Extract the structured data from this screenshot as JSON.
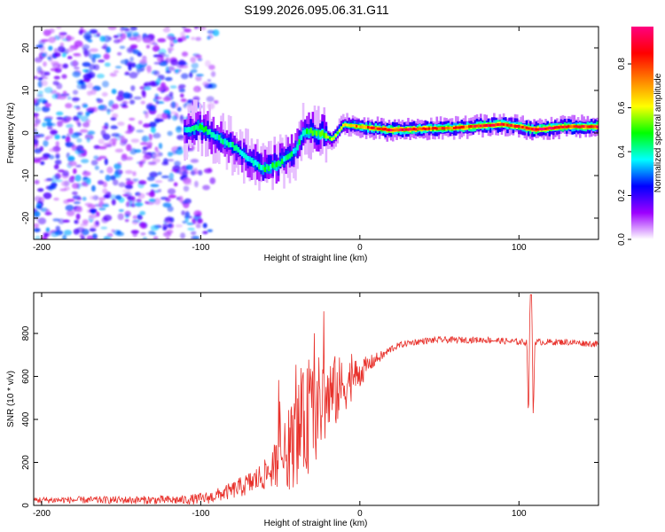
{
  "figure_title": "S199.2026.095.06.31.G11",
  "chart_data": [
    {
      "type": "heatmap",
      "title": "",
      "xlabel": "Height of straight line (km)",
      "ylabel": "Frequency (Hz)",
      "xlim": [
        -205,
        150
      ],
      "ylim": [
        -25,
        25
      ],
      "x_ticks": [
        -200,
        -100,
        0,
        100
      ],
      "y_ticks": [
        -20,
        -10,
        0,
        10,
        20
      ],
      "colorbar": {
        "label": "Normalized spectral amplitude",
        "range": [
          0,
          0.97
        ],
        "ticks": [
          0.0,
          0.2,
          0.4,
          0.6,
          0.8
        ],
        "colors": [
          "#ffffff",
          "#9d00ff",
          "#0000ff",
          "#00ffff",
          "#00ff00",
          "#ffff00",
          "#ff8000",
          "#ff0000",
          "#ff0080"
        ]
      },
      "noise_region": {
        "x": [
          -205,
          -100
        ],
        "y": [
          -25,
          25
        ],
        "amplitude": [
          0.05,
          0.35
        ]
      },
      "ridge": [
        {
          "x": -110,
          "freq": 0.5,
          "amp": 0.35
        },
        {
          "x": -100,
          "freq": 1.5,
          "amp": 0.45
        },
        {
          "x": -90,
          "freq": -1.0,
          "amp": 0.4
        },
        {
          "x": -80,
          "freq": -3.0,
          "amp": 0.4
        },
        {
          "x": -70,
          "freq": -6.0,
          "amp": 0.4
        },
        {
          "x": -60,
          "freq": -8.5,
          "amp": 0.45
        },
        {
          "x": -50,
          "freq": -7.0,
          "amp": 0.45
        },
        {
          "x": -40,
          "freq": -4.0,
          "amp": 0.4
        },
        {
          "x": -35,
          "freq": 0.5,
          "amp": 0.45
        },
        {
          "x": -25,
          "freq": 0.0,
          "amp": 0.5
        },
        {
          "x": -17,
          "freq": -1.5,
          "amp": 0.55
        },
        {
          "x": -10,
          "freq": 2.0,
          "amp": 0.6
        },
        {
          "x": 0,
          "freq": 1.5,
          "amp": 0.75
        },
        {
          "x": 20,
          "freq": 0.7,
          "amp": 0.9
        },
        {
          "x": 40,
          "freq": 1.0,
          "amp": 0.85
        },
        {
          "x": 60,
          "freq": 1.2,
          "amp": 0.8
        },
        {
          "x": 80,
          "freq": 1.8,
          "amp": 0.9
        },
        {
          "x": 90,
          "freq": 2.0,
          "amp": 0.85
        },
        {
          "x": 100,
          "freq": 1.5,
          "amp": 0.8
        },
        {
          "x": 110,
          "freq": 0.8,
          "amp": 0.95
        },
        {
          "x": 130,
          "freq": 1.5,
          "amp": 0.85
        },
        {
          "x": 150,
          "freq": 1.5,
          "amp": 0.85
        }
      ]
    },
    {
      "type": "line",
      "title": "",
      "xlabel": "Height of straight line (km)",
      "ylabel": "SNR (10 * v/v)",
      "xlim": [
        -205,
        150
      ],
      "ylim": [
        0,
        990
      ],
      "x_ticks": [
        -200,
        -100,
        0,
        100
      ],
      "y_ticks": [
        0,
        200,
        400,
        600,
        800
      ],
      "series": [
        {
          "name": "SNR",
          "color": "#e8302a",
          "x": [
            -205,
            -150,
            -110,
            -95,
            -80,
            -70,
            -60,
            -50,
            -45,
            -40,
            -35,
            -30,
            -25,
            -20,
            -15,
            -10,
            -5,
            0,
            5,
            10,
            15,
            20,
            25,
            30,
            40,
            50,
            60,
            70,
            80,
            90,
            100,
            105,
            106,
            107,
            108,
            109,
            110,
            115,
            120,
            130,
            140,
            150
          ],
          "y": [
            25,
            25,
            25,
            35,
            70,
            100,
            140,
            210,
            250,
            320,
            380,
            420,
            470,
            500,
            530,
            555,
            590,
            615,
            650,
            680,
            700,
            730,
            745,
            755,
            765,
            770,
            770,
            770,
            770,
            765,
            760,
            760,
            380,
            980,
            980,
            400,
            760,
            760,
            760,
            760,
            755,
            750
          ],
          "jitter": [
            15,
            18,
            22,
            28,
            40,
            55,
            70,
            120,
            180,
            230,
            250,
            260,
            230,
            200,
            170,
            130,
            100,
            70,
            45,
            30,
            22,
            18,
            15,
            15,
            15,
            15,
            15,
            15,
            15,
            15,
            15,
            15,
            0,
            0,
            0,
            0,
            15,
            15,
            15,
            15,
            15,
            15
          ]
        }
      ]
    }
  ]
}
